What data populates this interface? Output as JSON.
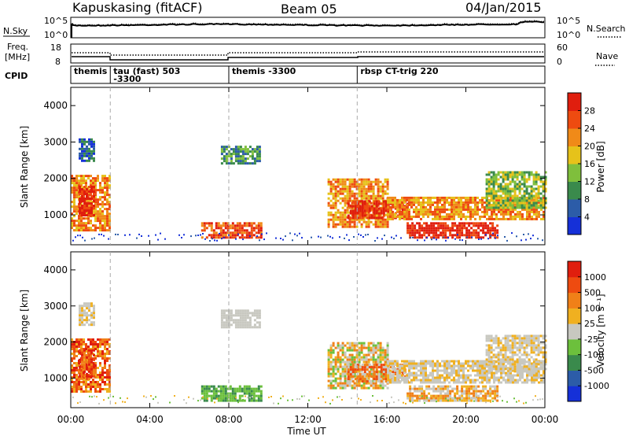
{
  "header": {
    "station": "Kapuskasing (fitACF)",
    "beam": "Beam 05",
    "date": "04/Jan/2015"
  },
  "noise_panel": {
    "left_label": "N.Sky",
    "right_label": "N.Search",
    "left_ticks": [
      "10^5",
      "10^0"
    ],
    "right_ticks": [
      "10^5",
      "10^0"
    ]
  },
  "freq_panel": {
    "left_label_line1": "Freq.",
    "left_label_line2": "[MHz]",
    "right_label": "Nave",
    "left_ticks": [
      "18",
      "8"
    ],
    "right_ticks": [
      "60",
      "0"
    ]
  },
  "cpid_panel": {
    "label": "CPID",
    "segments": [
      {
        "line1": "themis",
        "line2": "",
        "start_hr": 0
      },
      {
        "line1": "tau (fast) 503",
        "line2": "-3300",
        "start_hr": 2
      },
      {
        "line1": "themis -3300",
        "line2": "",
        "start_hr": 8
      },
      {
        "line1": "rbsp CT-trig 220",
        "line2": "",
        "start_hr": 14.5
      }
    ]
  },
  "axes": {
    "ylabel": "Slant Range [km]",
    "xlabel": "Time UT",
    "xtick_labels": [
      "00:00",
      "04:00",
      "08:00",
      "12:00",
      "16:00",
      "20:00",
      "00:00"
    ],
    "ytick_labels": [
      "1000",
      "2000",
      "3000",
      "4000"
    ]
  },
  "colorbars": {
    "power": {
      "label": "Power [dB]",
      "ticks": [
        "4",
        "8",
        "12",
        "16",
        "20",
        "24",
        "28"
      ],
      "colors": [
        "#1530d8",
        "#2c5ca8",
        "#3a8a4c",
        "#7fbf3c",
        "#e6c21a",
        "#f08a18",
        "#ee4b10",
        "#e01e0e"
      ]
    },
    "velocity": {
      "label": "Velocity [m s⁻¹]",
      "ticks": [
        "1000",
        "500",
        "100",
        "25",
        "-25",
        "-100",
        "-500",
        "-1000"
      ],
      "colors": [
        "#1530d8",
        "#2c5ca8",
        "#3a8a4c",
        "#6cc03c",
        "#c8c8c0",
        "#f0b020",
        "#f08018",
        "#ee4b10",
        "#e01e0e"
      ]
    }
  },
  "chart_data": {
    "type": "heatmap",
    "xlim_hours": [
      0,
      24
    ],
    "ylim_km": [
      180,
      4500
    ],
    "power_features": [
      {
        "t0": 0.0,
        "t1": 2.0,
        "r0": 600,
        "r1": 2100,
        "level": 6
      },
      {
        "t0": 0.4,
        "t1": 1.2,
        "r0": 1000,
        "r1": 1800,
        "level": 8
      },
      {
        "t0": 0.4,
        "t1": 1.2,
        "r0": 2500,
        "r1": 3100,
        "level": 2
      },
      {
        "t0": 6.6,
        "t1": 9.6,
        "r0": 380,
        "r1": 800,
        "level": 7
      },
      {
        "t0": 7.6,
        "t1": 9.6,
        "r0": 2400,
        "r1": 2900,
        "level": 3
      },
      {
        "t0": 13.0,
        "t1": 16.0,
        "r0": 700,
        "r1": 2000,
        "level": 6
      },
      {
        "t0": 14.0,
        "t1": 17.0,
        "r0": 900,
        "r1": 1400,
        "level": 8
      },
      {
        "t0": 17.0,
        "t1": 21.6,
        "r0": 380,
        "r1": 800,
        "level": 8
      },
      {
        "t0": 16.0,
        "t1": 24.0,
        "r0": 900,
        "r1": 1500,
        "level": 6
      },
      {
        "t0": 21.0,
        "t1": 24.0,
        "r0": 1200,
        "r1": 2200,
        "level": 4
      }
    ]
  }
}
